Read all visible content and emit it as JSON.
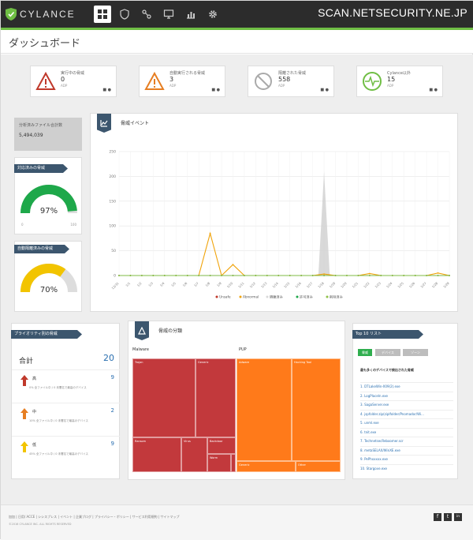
{
  "brand": {
    "name": "CYLANCE"
  },
  "watermark": "SCAN.NETSECURITY.NE.JP",
  "page_title": "ダッシュボード",
  "nav_icons": [
    "dashboard-icon",
    "protection-icon",
    "policy-icon",
    "devices-icon",
    "reports-icon",
    "settings-icon"
  ],
  "stats": [
    {
      "label": "実行中の脅威",
      "value": "0",
      "sub": "ADP",
      "icon": "warning-icon",
      "color": "#c0392b"
    },
    {
      "label": "自動実行される脅威",
      "value": "3",
      "sub": "ADP",
      "icon": "warning-icon",
      "color": "#e67e22"
    },
    {
      "label": "隔離された脅威",
      "value": "558",
      "sub": "ADP",
      "icon": "blocked-icon",
      "color": "#aaaaaa"
    },
    {
      "label": "Cylance以外",
      "value": "15",
      "sub": "ADP",
      "icon": "pulse-icon",
      "color": "#6fbe44"
    }
  ],
  "files_analyzed": {
    "label": "分析済みファイル合計数",
    "value": "5,494,039"
  },
  "gauges": [
    {
      "title": "対応済みの脅威",
      "percent": 97,
      "percent_label": "97%",
      "color": "#1ea84a",
      "min": "0",
      "max": "100"
    },
    {
      "title": "自動隔離済みの脅威",
      "percent": 70,
      "percent_label": "70%",
      "color": "#f2c400",
      "min": "0",
      "max": "100"
    }
  ],
  "threat_events": {
    "title": "脅威イベント"
  },
  "chart_data": {
    "type": "line",
    "title": "脅威イベント",
    "ylim": [
      0,
      250
    ],
    "yticks": [
      "0",
      "50",
      "100",
      "150",
      "200",
      "250"
    ],
    "x": [
      "12/31",
      "1/1",
      "1/2",
      "1/3",
      "1/4",
      "1/5",
      "1/6",
      "1/7",
      "1/8",
      "1/9",
      "1/10",
      "1/11",
      "1/12",
      "1/13",
      "1/14",
      "1/15",
      "1/16",
      "1/17",
      "1/18",
      "1/19",
      "1/20",
      "1/21",
      "1/22",
      "1/23",
      "1/24",
      "1/25",
      "1/26",
      "1/27",
      "1/28",
      "1/29"
    ],
    "series": [
      {
        "name": "Unsafe",
        "color": "#c0392b",
        "values": [
          0,
          0,
          0,
          0,
          0,
          0,
          0,
          0,
          0,
          0,
          0,
          0,
          0,
          0,
          0,
          0,
          0,
          0,
          0,
          0,
          0,
          0,
          0,
          0,
          0,
          0,
          0,
          0,
          0,
          0
        ]
      },
      {
        "name": "Abnormal",
        "color": "#f0a30a",
        "values": [
          0,
          0,
          0,
          0,
          0,
          0,
          0,
          0,
          85,
          0,
          22,
          0,
          0,
          0,
          0,
          0,
          0,
          0,
          3,
          0,
          0,
          0,
          4,
          0,
          0,
          0,
          0,
          0,
          5,
          0
        ]
      },
      {
        "name": "隔離済み",
        "color": "#d8d8d8",
        "values": [
          0,
          0,
          0,
          0,
          0,
          0,
          0,
          0,
          0,
          0,
          0,
          0,
          0,
          0,
          0,
          0,
          0,
          0,
          210,
          0,
          0,
          0,
          0,
          0,
          0,
          0,
          0,
          0,
          0,
          0
        ]
      },
      {
        "name": "許可済み",
        "color": "#1ea84a",
        "values": [
          0,
          0,
          0,
          0,
          0,
          0,
          0,
          0,
          0,
          0,
          0,
          0,
          0,
          0,
          0,
          0,
          0,
          0,
          0,
          0,
          0,
          0,
          0,
          0,
          0,
          0,
          0,
          0,
          0,
          0
        ]
      },
      {
        "name": "削除済み",
        "color": "#8fc24a",
        "values": [
          0,
          0,
          0,
          0,
          0,
          0,
          0,
          0,
          0,
          0,
          0,
          0,
          0,
          0,
          0,
          0,
          0,
          0,
          0,
          0,
          0,
          0,
          0,
          0,
          0,
          0,
          0,
          0,
          0,
          0
        ]
      }
    ],
    "legend_position": "bottom",
    "grid": true
  },
  "priority": {
    "title": "プライオリティ別の脅威",
    "total_label": "合計",
    "total_value": "20",
    "rows": [
      {
        "label": "高",
        "value": "9",
        "color": "#c0392b",
        "desc": "0% 全ファイル中 / 0 未署名で最高のデバイス"
      },
      {
        "label": "中",
        "value": "2",
        "color": "#e67e22",
        "desc": "10% 全ファイル中 / 0 未署名で最高のデバイス"
      },
      {
        "label": "低",
        "value": "9",
        "color": "#f2c400",
        "desc": "45% 全ファイル中 / 0 未署名で最高のデバイス"
      }
    ]
  },
  "classification": {
    "title": "脅威の分類",
    "groups": [
      "Malware",
      "PUP"
    ],
    "cells": [
      {
        "label": "Trojan",
        "color": "#c2393c"
      },
      {
        "label": "Generic",
        "color": "#c2393c"
      },
      {
        "label": "Ransom",
        "color": "#c2393c"
      },
      {
        "label": "Virus",
        "color": "#c2393c"
      },
      {
        "label": "Backdoor",
        "color": "#c2393c"
      },
      {
        "label": "Worm",
        "color": "#c2393c"
      },
      {
        "label": "Adware",
        "color": "#ff7a1a"
      },
      {
        "label": "Hacking Tool",
        "color": "#ff7a1a"
      },
      {
        "label": "Generic",
        "color": "#ff7a1a"
      },
      {
        "label": "Other",
        "color": "#ff7a1a"
      }
    ]
  },
  "top10": {
    "title": "Top 10 リスト",
    "tabs": [
      "脅威",
      "デバイス",
      "ゾーン"
    ],
    "list_head": "最も多くのデバイスで検出された脅威",
    "files": [
      "DTLakeWin-X09(2).exe",
      "LogPlaceIn.exe",
      "SagaServer.exe",
      "jspfolder.zip(ziplfolder/Pnomador/Wi...",
      "unml.exe",
      "tnit.exe",
      "TechnetsecReboomer.scr",
      "metaSELAX/WinXE.exe",
      "PePhxxxxx.exe",
      "Stargove.exe"
    ]
  },
  "footer": {
    "links": "加加 | 日用/ ACCE | シシスプレス | イベント | 企業ブログ | プライバシー・ポリシー | サービス利用規約 | サイトマップ",
    "copyright": "©2016 CYLANCE INC. ALL RIGHTS RESERVED",
    "social": [
      "f",
      "t",
      "in"
    ]
  }
}
